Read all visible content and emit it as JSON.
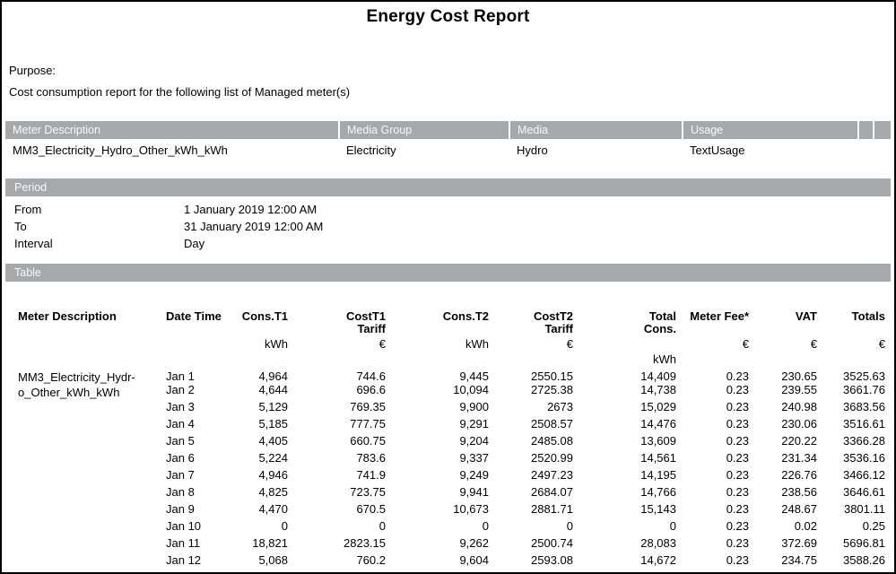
{
  "title": "Energy Cost Report",
  "purpose": {
    "label": "Purpose:",
    "text": "Cost consumption report for the following list of Managed meter(s)"
  },
  "meters_section": {
    "columns": [
      "Meter Description",
      "Media Group",
      "Media",
      "Usage"
    ],
    "row": [
      "MM3_Electricity_Hydro_Other_kWh_kWh",
      "Electricity",
      "Hydro",
      "TextUsage"
    ]
  },
  "period_section": {
    "label": "Period",
    "fields": [
      {
        "label": "From",
        "value": "1 January 2019 12:00 AM"
      },
      {
        "label": "To",
        "value": "31 January 2019 12:00 AM"
      },
      {
        "label": "Interval",
        "value": "Day"
      }
    ]
  },
  "table_section": {
    "label": "Table",
    "columns": [
      {
        "label": "Meter Description",
        "sublabel": "",
        "unit": "",
        "unit2": ""
      },
      {
        "label": "Date Time",
        "sublabel": "",
        "unit": "",
        "unit2": ""
      },
      {
        "label": "Cons.T1",
        "sublabel": "",
        "unit": "kWh",
        "unit2": ""
      },
      {
        "label": "CostT1",
        "sublabel": "Tariff",
        "unit": "€",
        "unit2": ""
      },
      {
        "label": "Cons.T2",
        "sublabel": "",
        "unit": "kWh",
        "unit2": ""
      },
      {
        "label": "CostT2",
        "sublabel": "Tariff",
        "unit": "€",
        "unit2": ""
      },
      {
        "label": "Total",
        "sublabel": "Cons.",
        "unit": "",
        "unit2": "kWh"
      },
      {
        "label": "Meter Fee*",
        "sublabel": "",
        "unit": "€",
        "unit2": ""
      },
      {
        "label": "VAT",
        "sublabel": "",
        "unit": "€",
        "unit2": ""
      },
      {
        "label": "Totals",
        "sublabel": "",
        "unit": "€",
        "unit2": ""
      }
    ],
    "meter_name_lines": [
      "MM3_Electricity_Hydr-",
      "o_Other_kWh_kWh"
    ],
    "rows": [
      [
        "Jan 1",
        "4,964",
        "744.6",
        "9,445",
        "2550.15",
        "14,409",
        "0.23",
        "230.65",
        "3525.63"
      ],
      [
        "Jan 2",
        "4,644",
        "696.6",
        "10,094",
        "2725.38",
        "14,738",
        "0.23",
        "239.55",
        "3661.76"
      ],
      [
        "Jan 3",
        "5,129",
        "769.35",
        "9,900",
        "2673",
        "15,029",
        "0.23",
        "240.98",
        "3683.56"
      ],
      [
        "Jan 4",
        "5,185",
        "777.75",
        "9,291",
        "2508.57",
        "14,476",
        "0.23",
        "230.06",
        "3516.61"
      ],
      [
        "Jan 5",
        "4,405",
        "660.75",
        "9,204",
        "2485.08",
        "13,609",
        "0.23",
        "220.22",
        "3366.28"
      ],
      [
        "Jan 6",
        "5,224",
        "783.6",
        "9,337",
        "2520.99",
        "14,561",
        "0.23",
        "231.34",
        "3536.16"
      ],
      [
        "Jan 7",
        "4,946",
        "741.9",
        "9,249",
        "2497.23",
        "14,195",
        "0.23",
        "226.76",
        "3466.12"
      ],
      [
        "Jan 8",
        "4,825",
        "723.75",
        "9,941",
        "2684.07",
        "14,766",
        "0.23",
        "238.56",
        "3646.61"
      ],
      [
        "Jan 9",
        "4,470",
        "670.5",
        "10,673",
        "2881.71",
        "15,143",
        "0.23",
        "248.67",
        "3801.11"
      ],
      [
        "Jan 10",
        "0",
        "0",
        "0",
        "0",
        "0",
        "0.23",
        "0.02",
        "0.25"
      ],
      [
        "Jan 11",
        "18,821",
        "2823.15",
        "9,262",
        "2500.74",
        "28,083",
        "0.23",
        "372.69",
        "5696.81"
      ],
      [
        "Jan 12",
        "5,068",
        "760.2",
        "9,604",
        "2593.08",
        "14,672",
        "0.23",
        "234.75",
        "3588.26"
      ]
    ]
  },
  "colors": {
    "section_bar_bg": "#a6a9ab",
    "section_bar_text": "#f8f8f8",
    "page_border": "#000000"
  }
}
